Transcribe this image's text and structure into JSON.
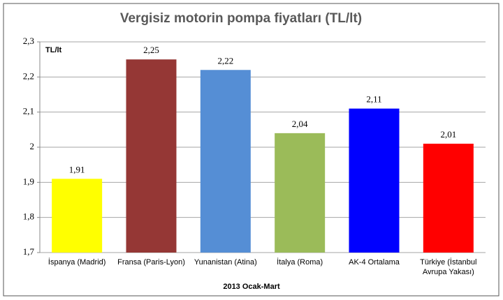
{
  "chart_data": {
    "type": "bar",
    "title": "Vergisiz motorin pompa fiyatları (TL/lt)",
    "y_axis_label": "TL/lt",
    "x_axis_label": "2013  Ocak-Mart",
    "categories": [
      "İspanya (Madrid)",
      "Fransa (Paris-Lyon)",
      "Yunanistan (Atina)",
      "İtalya (Roma)",
      "AK-4 Ortalama",
      "Türkiye (İstanbul Avrupa Yakası)"
    ],
    "values": [
      1.91,
      2.25,
      2.22,
      2.04,
      2.11,
      2.01
    ],
    "value_labels": [
      "1,91",
      "2,25",
      "2,22",
      "2,04",
      "2,11",
      "2,01"
    ],
    "colors": [
      "#ffff00",
      "#953735",
      "#558ed5",
      "#9bbb59",
      "#0000ff",
      "#ff0000"
    ],
    "ylim": [
      1.7,
      2.3
    ],
    "yticks": [
      {
        "value": 1.7,
        "label": "1,7"
      },
      {
        "value": 1.8,
        "label": "1,8"
      },
      {
        "value": 1.9,
        "label": "1,9"
      },
      2,
      {
        "value": 2.1,
        "label": "2,1"
      },
      {
        "value": 2.2,
        "label": "2,2"
      },
      {
        "value": 2.3,
        "label": "2,3"
      }
    ],
    "grid": true
  }
}
